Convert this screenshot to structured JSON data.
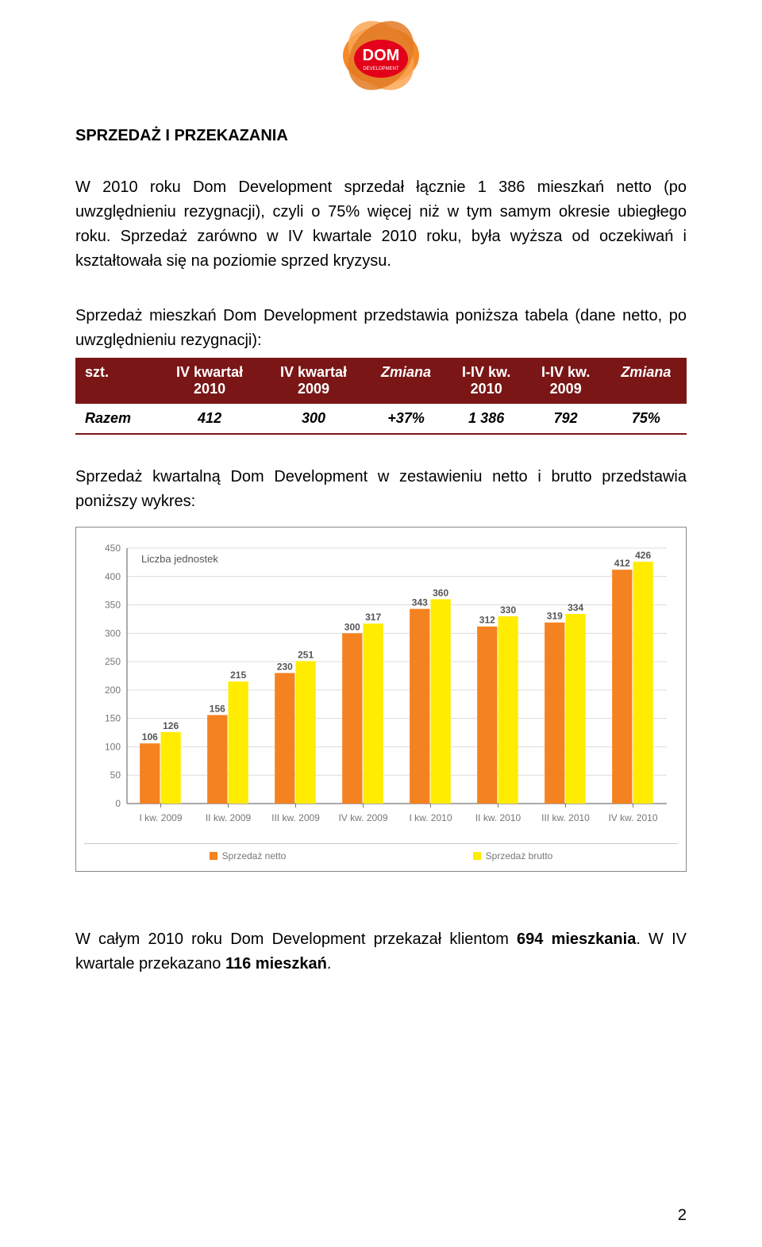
{
  "logo": {
    "petal_color": "#f58220",
    "petal_shadow": "#d96f17",
    "text_bg": "#e2001a",
    "text": "DOM",
    "subtext": "DEVELOPMENT",
    "text_color": "#ffffff"
  },
  "heading": "SPRZEDAŻ I PRZEKAZANIA",
  "para1": "W 2010 roku Dom Development sprzedał łącznie 1 386 mieszkań netto (po uwzględnieniu rezygnacji), czyli o 75% więcej niż w tym samym okresie ubiegłego roku. Sprzedaż zarówno w IV kwartale 2010 roku, była wyższa od oczekiwań i kształtowała się na poziomie sprzed kryzysu.",
  "para2": "Sprzedaż mieszkań Dom Development przedstawia poniższa tabela (dane netto, po uwzględnieniu rezygnacji):",
  "table": {
    "headers": {
      "c0_line1": "szt.",
      "c1_line1": "IV kwartał",
      "c1_line2": "2010",
      "c2_line1": "IV kwartał",
      "c2_line2": "2009",
      "c3_line1": "Zmiana",
      "c4_line1": "I-IV kw.",
      "c4_line2": "2010",
      "c5_line1": "I-IV kw.",
      "c5_line2": "2009",
      "c6_line1": "Zmiana"
    },
    "row": {
      "label": "Razem",
      "v1": "412",
      "v2": "300",
      "v3": "+37%",
      "v4": "1 386",
      "v5": "792",
      "v6": "75%"
    },
    "header_bg": "#7a1616",
    "header_color": "#ffffff",
    "row_border": "#7a1616"
  },
  "para_chart_intro": "Sprzedaż kwartalną Dom Development w zestawieniu netto i brutto przedstawia poniższy wykres:",
  "chart": {
    "type": "bar",
    "y_label": "Liczba jednostek",
    "y_label_fontsize": 13,
    "y_label_color": "#555555",
    "ylim": [
      0,
      450
    ],
    "ytick_step": 50,
    "yticks": [
      0,
      50,
      100,
      150,
      200,
      250,
      300,
      350,
      400,
      450
    ],
    "categories": [
      "I kw. 2009",
      "II kw. 2009",
      "III kw. 2009",
      "IV kw. 2009",
      "I kw. 2010",
      "II kw. 2010",
      "III kw. 2010",
      "IV kw. 2010"
    ],
    "series": [
      {
        "name": "Sprzedaż netto",
        "color": "#f58220",
        "values": [
          106,
          156,
          230,
          300,
          343,
          312,
          319,
          412
        ]
      },
      {
        "name": "Sprzedaż brutto",
        "color": "#ffec00",
        "values": [
          126,
          215,
          251,
          317,
          360,
          330,
          334,
          426
        ]
      }
    ],
    "axis_color": "#777777",
    "grid_color": "#dcdcdc",
    "background_color": "#ffffff",
    "tick_label_fontsize": 12,
    "tick_label_color": "#777777",
    "value_label_fontsize": 12,
    "value_label_color": "#555555",
    "bar_group_width": 0.62,
    "plot_border_color": "#a0a0a0"
  },
  "para3_pre": "W całym 2010 roku Dom Development przekazał klientom ",
  "para3_bold1": "694 mieszkania",
  "para3_mid": ". W  IV kwartale przekazano ",
  "para3_bold2": "116 mieszkań",
  "para3_post": ".",
  "page_number": "2"
}
